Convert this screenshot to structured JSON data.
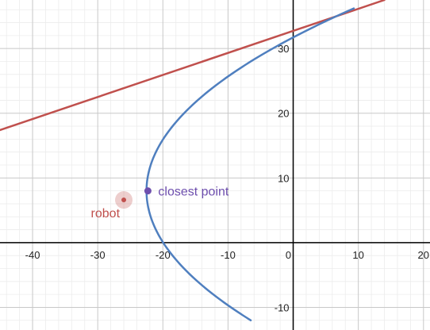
{
  "chart_data": {
    "type": "scatter",
    "xlim": [
      -45,
      21
    ],
    "ylim": [
      -13.5,
      37.5
    ],
    "grid": true,
    "minor_grid": true,
    "x_ticks": [
      -40,
      -30,
      -20,
      -10,
      0,
      10,
      20
    ],
    "y_ticks": [
      -10,
      10,
      20,
      30
    ],
    "x_tick_labels": [
      "-40",
      "-30",
      "-20",
      "-10",
      "0",
      "10",
      "20"
    ],
    "y_tick_labels": [
      "-10",
      "10",
      "20",
      "30"
    ],
    "series": [
      {
        "kind": "line",
        "color": "#c0504d",
        "x": [
          -45,
          14
        ],
        "y": [
          17.4,
          37.5
        ]
      },
      {
        "kind": "parabola",
        "color": "#4f7fbf",
        "equation": "x = 0.04*y^2 - 0.64*y - 19.95",
        "y_range": [
          -12,
          36.3
        ]
      }
    ],
    "points": [
      {
        "label": "robot",
        "x": -26,
        "y": 6.6,
        "color": "#c0504d",
        "halo": true
      },
      {
        "label": "closest point",
        "x": -22.3,
        "y": 8,
        "color": "#6e4fae",
        "halo": false
      }
    ]
  }
}
